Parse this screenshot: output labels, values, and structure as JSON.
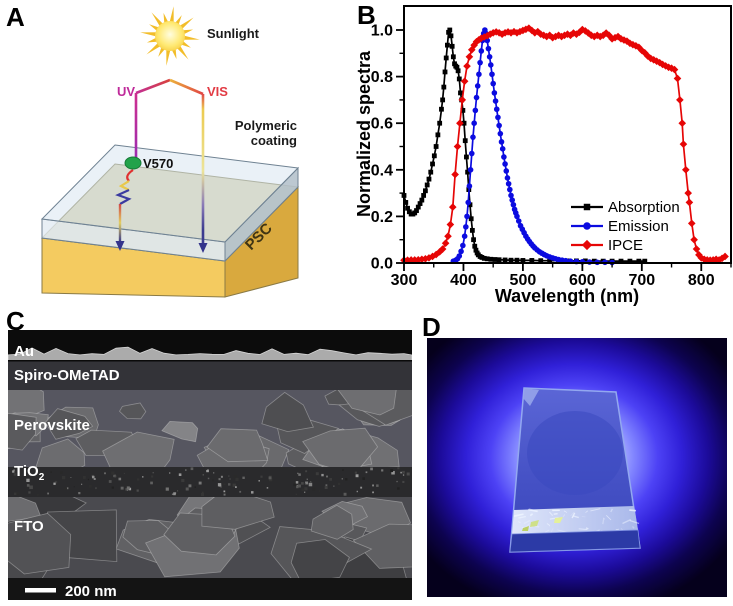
{
  "figure": {
    "panels": {
      "a": {
        "label": "A",
        "sunlight": "Sunlight",
        "uv": "UV",
        "vis": "VIS",
        "coating1": "Polymeric",
        "coating2": "coating",
        "dye": "V570",
        "psc": "PSC",
        "colors": {
          "uv_label": "#bf2a9a",
          "vis_label": "#e23b44",
          "dye_dot": "#22a24a",
          "psc_front": "#f4cb60",
          "psc_side": "#d9a93e",
          "coating_top": "#d5e4ef",
          "arrow": "#34348c",
          "sun": "#f3c12f"
        }
      },
      "b": {
        "label": "B"
      },
      "c": {
        "label": "C",
        "layers": {
          "au": "Au",
          "spiro": "Spiro-OMeTAD",
          "perovskite": "Perovskite",
          "tio2_base": "TiO",
          "tio2_sub": "2",
          "fto": "FTO"
        },
        "scale_bar": "200 nm"
      },
      "d": {
        "label": "D"
      }
    }
  },
  "chart_data": {
    "type": "line",
    "title": "",
    "xlabel": "Wavelength (nm)",
    "ylabel": "Normalized spectra",
    "xlim": [
      300,
      850
    ],
    "ylim": [
      0,
      1.07
    ],
    "x_ticks": [
      300,
      400,
      500,
      600,
      700,
      800
    ],
    "x_minor_ticks": [
      350,
      450,
      550,
      650,
      750,
      850
    ],
    "y_ticks": [
      0.0,
      0.2,
      0.4,
      0.6,
      0.8,
      1.0
    ],
    "y_minor_ticks": [
      0.1,
      0.3,
      0.5,
      0.7,
      0.9
    ],
    "grid": false,
    "legend_position": "inside lower right",
    "series": [
      {
        "name": "Absorption",
        "color": "#000000",
        "marker": "square",
        "points": [
          [
            300,
            0.29
          ],
          [
            303,
            0.26
          ],
          [
            306,
            0.235
          ],
          [
            309,
            0.22
          ],
          [
            312,
            0.21
          ],
          [
            315,
            0.21
          ],
          [
            318,
            0.215
          ],
          [
            321,
            0.225
          ],
          [
            324,
            0.24
          ],
          [
            327,
            0.255
          ],
          [
            330,
            0.27
          ],
          [
            333,
            0.29
          ],
          [
            336,
            0.31
          ],
          [
            339,
            0.335
          ],
          [
            342,
            0.36
          ],
          [
            345,
            0.39
          ],
          [
            348,
            0.425
          ],
          [
            351,
            0.46
          ],
          [
            354,
            0.5
          ],
          [
            357,
            0.55
          ],
          [
            360,
            0.6
          ],
          [
            363,
            0.66
          ],
          [
            365,
            0.7
          ],
          [
            367,
            0.755
          ],
          [
            369,
            0.82
          ],
          [
            371,
            0.88
          ],
          [
            373,
            0.935
          ],
          [
            375,
            0.99
          ],
          [
            377,
            1.0
          ],
          [
            379,
            0.975
          ],
          [
            381,
            0.93
          ],
          [
            383,
            0.885
          ],
          [
            385,
            0.855
          ],
          [
            387,
            0.845
          ],
          [
            389,
            0.84
          ],
          [
            391,
            0.825
          ],
          [
            393,
            0.79
          ],
          [
            395,
            0.73
          ],
          [
            397,
            0.7
          ],
          [
            399,
            0.655
          ],
          [
            401,
            0.6
          ],
          [
            403,
            0.525
          ],
          [
            405,
            0.455
          ],
          [
            407,
            0.39
          ],
          [
            409,
            0.315
          ],
          [
            411,
            0.25
          ],
          [
            413,
            0.19
          ],
          [
            415,
            0.14
          ],
          [
            417,
            0.1
          ],
          [
            419,
            0.072
          ],
          [
            421,
            0.055
          ],
          [
            423,
            0.043
          ],
          [
            425,
            0.035
          ],
          [
            428,
            0.028
          ],
          [
            431,
            0.024
          ],
          [
            435,
            0.02
          ],
          [
            440,
            0.018
          ],
          [
            446,
            0.016
          ],
          [
            453,
            0.015
          ],
          [
            460,
            0.014
          ],
          [
            470,
            0.013
          ],
          [
            480,
            0.012
          ],
          [
            490,
            0.012
          ],
          [
            500,
            0.011
          ],
          [
            515,
            0.011
          ],
          [
            530,
            0.01
          ],
          [
            545,
            0.01
          ],
          [
            560,
            0.01
          ],
          [
            575,
            0.009
          ],
          [
            590,
            0.009
          ],
          [
            605,
            0.009
          ],
          [
            620,
            0.008
          ],
          [
            635,
            0.008
          ],
          [
            650,
            0.008
          ],
          [
            665,
            0.008
          ],
          [
            680,
            0.008
          ],
          [
            695,
            0.008
          ],
          [
            705,
            0.008
          ]
        ]
      },
      {
        "name": "Emission",
        "color": "#0b0be0",
        "marker": "circle",
        "points": [
          [
            383,
            0.008
          ],
          [
            387,
            0.012
          ],
          [
            390,
            0.018
          ],
          [
            393,
            0.03
          ],
          [
            396,
            0.05
          ],
          [
            399,
            0.075
          ],
          [
            402,
            0.115
          ],
          [
            404,
            0.155
          ],
          [
            406,
            0.2
          ],
          [
            408,
            0.26
          ],
          [
            410,
            0.33
          ],
          [
            412,
            0.4
          ],
          [
            414,
            0.47
          ],
          [
            416,
            0.54
          ],
          [
            418,
            0.6
          ],
          [
            420,
            0.655
          ],
          [
            422,
            0.71
          ],
          [
            424,
            0.76
          ],
          [
            426,
            0.81
          ],
          [
            428,
            0.86
          ],
          [
            430,
            0.91
          ],
          [
            432,
            0.955
          ],
          [
            434,
            0.985
          ],
          [
            436,
            1.0
          ],
          [
            438,
            0.985
          ],
          [
            440,
            0.955
          ],
          [
            442,
            0.92
          ],
          [
            444,
            0.885
          ],
          [
            446,
            0.85
          ],
          [
            448,
            0.81
          ],
          [
            450,
            0.77
          ],
          [
            452,
            0.73
          ],
          [
            454,
            0.695
          ],
          [
            456,
            0.66
          ],
          [
            458,
            0.625
          ],
          [
            460,
            0.59
          ],
          [
            462,
            0.555
          ],
          [
            464,
            0.52
          ],
          [
            466,
            0.49
          ],
          [
            468,
            0.455
          ],
          [
            470,
            0.425
          ],
          [
            472,
            0.395
          ],
          [
            474,
            0.365
          ],
          [
            476,
            0.34
          ],
          [
            478,
            0.315
          ],
          [
            480,
            0.29
          ],
          [
            482,
            0.27
          ],
          [
            484,
            0.25
          ],
          [
            486,
            0.23
          ],
          [
            488,
            0.215
          ],
          [
            490,
            0.2
          ],
          [
            493,
            0.18
          ],
          [
            496,
            0.16
          ],
          [
            499,
            0.145
          ],
          [
            502,
            0.13
          ],
          [
            505,
            0.115
          ],
          [
            508,
            0.103
          ],
          [
            511,
            0.092
          ],
          [
            514,
            0.082
          ],
          [
            517,
            0.073
          ],
          [
            520,
            0.065
          ],
          [
            524,
            0.056
          ],
          [
            528,
            0.048
          ],
          [
            532,
            0.042
          ],
          [
            536,
            0.036
          ],
          [
            540,
            0.031
          ],
          [
            545,
            0.026
          ],
          [
            550,
            0.022
          ],
          [
            555,
            0.018
          ],
          [
            560,
            0.015
          ],
          [
            566,
            0.012
          ],
          [
            572,
            0.01
          ],
          [
            580,
            0.008
          ],
          [
            590,
            0.006
          ],
          [
            600,
            0.005
          ],
          [
            612,
            0.004
          ],
          [
            625,
            0.003
          ],
          [
            638,
            0.003
          ],
          [
            650,
            0.002
          ]
        ]
      },
      {
        "name": "IPCE",
        "color": "#e60606",
        "marker": "diamond",
        "points": [
          [
            300,
            0.012
          ],
          [
            306,
            0.012
          ],
          [
            312,
            0.013
          ],
          [
            318,
            0.013
          ],
          [
            324,
            0.014
          ],
          [
            330,
            0.016
          ],
          [
            336,
            0.018
          ],
          [
            342,
            0.022
          ],
          [
            348,
            0.028
          ],
          [
            354,
            0.036
          ],
          [
            360,
            0.048
          ],
          [
            365,
            0.06
          ],
          [
            370,
            0.085
          ],
          [
            374,
            0.115
          ],
          [
            378,
            0.165
          ],
          [
            382,
            0.24
          ],
          [
            386,
            0.38
          ],
          [
            390,
            0.5
          ],
          [
            394,
            0.6
          ],
          [
            398,
            0.7
          ],
          [
            402,
            0.78
          ],
          [
            406,
            0.845
          ],
          [
            410,
            0.885
          ],
          [
            414,
            0.915
          ],
          [
            418,
            0.935
          ],
          [
            422,
            0.95
          ],
          [
            426,
            0.958
          ],
          [
            430,
            0.965
          ],
          [
            435,
            0.97
          ],
          [
            440,
            0.975
          ],
          [
            445,
            0.982
          ],
          [
            450,
            0.988
          ],
          [
            455,
            0.992
          ],
          [
            460,
            0.988
          ],
          [
            465,
            0.982
          ],
          [
            470,
            0.988
          ],
          [
            475,
            0.992
          ],
          [
            480,
            0.988
          ],
          [
            485,
            0.993
          ],
          [
            490,
            0.988
          ],
          [
            495,
            0.993
          ],
          [
            500,
            0.998
          ],
          [
            505,
            1.003
          ],
          [
            510,
            1.008
          ],
          [
            515,
            0.998
          ],
          [
            520,
            0.988
          ],
          [
            525,
            0.993
          ],
          [
            530,
            0.982
          ],
          [
            535,
            0.977
          ],
          [
            540,
            0.972
          ],
          [
            545,
            0.977
          ],
          [
            550,
            0.967
          ],
          [
            555,
            0.972
          ],
          [
            560,
            0.977
          ],
          [
            565,
            0.972
          ],
          [
            570,
            0.977
          ],
          [
            575,
            0.982
          ],
          [
            580,
            0.977
          ],
          [
            585,
            0.987
          ],
          [
            590,
            0.982
          ],
          [
            595,
            0.99
          ],
          [
            600,
            1.002
          ],
          [
            605,
            0.996
          ],
          [
            610,
            0.987
          ],
          [
            615,
            0.977
          ],
          [
            620,
            0.972
          ],
          [
            625,
            0.977
          ],
          [
            630,
            0.972
          ],
          [
            635,
            0.977
          ],
          [
            640,
            0.987
          ],
          [
            645,
            0.977
          ],
          [
            650,
            0.962
          ],
          [
            655,
            0.967
          ],
          [
            660,
            0.972
          ],
          [
            665,
            0.962
          ],
          [
            670,
            0.957
          ],
          [
            675,
            0.952
          ],
          [
            680,
            0.943
          ],
          [
            685,
            0.937
          ],
          [
            690,
            0.932
          ],
          [
            695,
            0.926
          ],
          [
            700,
            0.912
          ],
          [
            705,
            0.902
          ],
          [
            710,
            0.888
          ],
          [
            715,
            0.878
          ],
          [
            720,
            0.872
          ],
          [
            725,
            0.866
          ],
          [
            730,
            0.86
          ],
          [
            735,
            0.852
          ],
          [
            740,
            0.846
          ],
          [
            745,
            0.84
          ],
          [
            750,
            0.836
          ],
          [
            755,
            0.83
          ],
          [
            760,
            0.792
          ],
          [
            764,
            0.7
          ],
          [
            768,
            0.6
          ],
          [
            770,
            0.51
          ],
          [
            774,
            0.4
          ],
          [
            778,
            0.3
          ],
          [
            780,
            0.26
          ],
          [
            784,
            0.17
          ],
          [
            788,
            0.1
          ],
          [
            792,
            0.06
          ],
          [
            796,
            0.035
          ],
          [
            800,
            0.022
          ],
          [
            805,
            0.016
          ],
          [
            810,
            0.013
          ],
          [
            815,
            0.012
          ],
          [
            820,
            0.013
          ],
          [
            825,
            0.016
          ],
          [
            830,
            0.013
          ],
          [
            835,
            0.02
          ],
          [
            840,
            0.028
          ]
        ]
      }
    ]
  }
}
